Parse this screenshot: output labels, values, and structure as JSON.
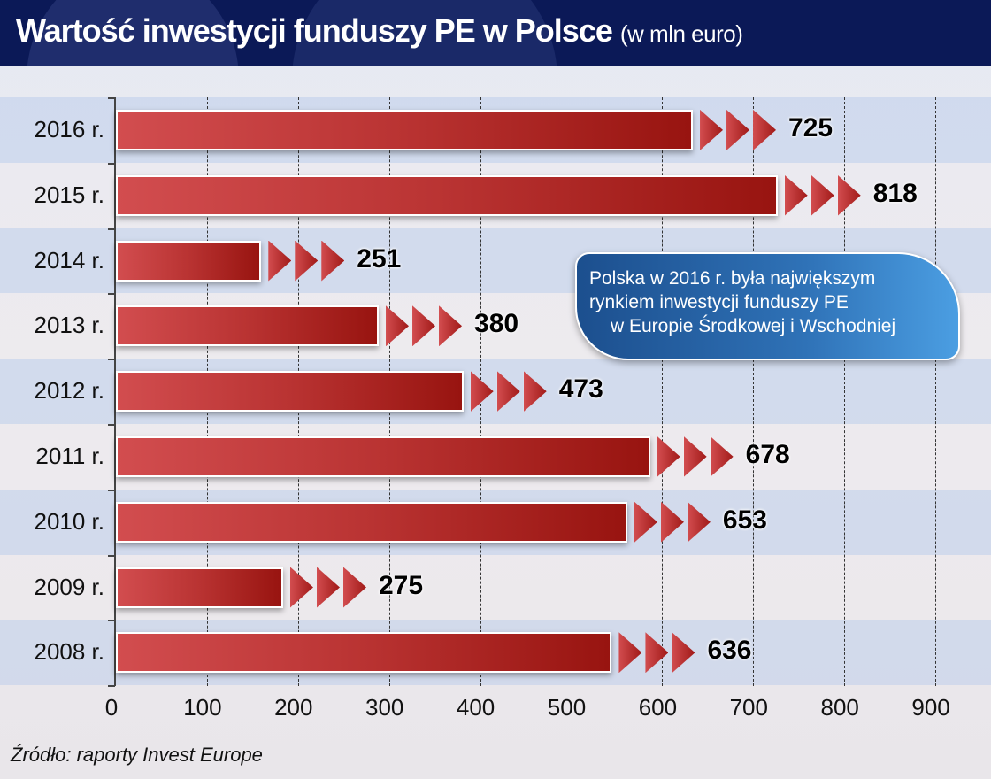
{
  "header": {
    "title": "Wartość inwestycji funduszy PE w Polsce",
    "subtitle": "(w mln euro)"
  },
  "callout": {
    "line1": "Polska w 2016 r. była największym",
    "line2": "rynkiem inwestycji funduszy PE",
    "line3": "w Europie Środkowej i Wschodniej"
  },
  "source": "Źródło: raporty Invest Europe",
  "colors": {
    "header_bg": "#0b1957",
    "bar_light": "#d24d4f",
    "bar_dark": "#981410",
    "callout_dark": "#1c4f8e",
    "callout_light": "#4b9ee2"
  },
  "chart_data": {
    "type": "bar",
    "orientation": "horizontal",
    "title": "Wartość inwestycji funduszy PE w Polsce (w mln euro)",
    "xlabel": "",
    "ylabel": "",
    "categories": [
      "2016 r.",
      "2015 r.",
      "2014 r.",
      "2013 r.",
      "2012 r.",
      "2011 r.",
      "2010 r.",
      "2009 r.",
      "2008 r."
    ],
    "values": [
      725,
      818,
      251,
      380,
      473,
      678,
      653,
      275,
      636
    ],
    "value_labels": [
      "725",
      "818",
      "251",
      "380",
      "473",
      "678",
      "653",
      "275",
      "636"
    ],
    "xlim": [
      0,
      900
    ],
    "xticks": [
      "0",
      "100",
      "200",
      "300",
      "400",
      "500",
      "600",
      "700",
      "800",
      "900"
    ],
    "grid": "vertical dashed",
    "legend": null,
    "annotation": "Polska w 2016 r. była największym rynkiem inwestycji funduszy PE w Europie Środkowej i Wschodniej"
  }
}
